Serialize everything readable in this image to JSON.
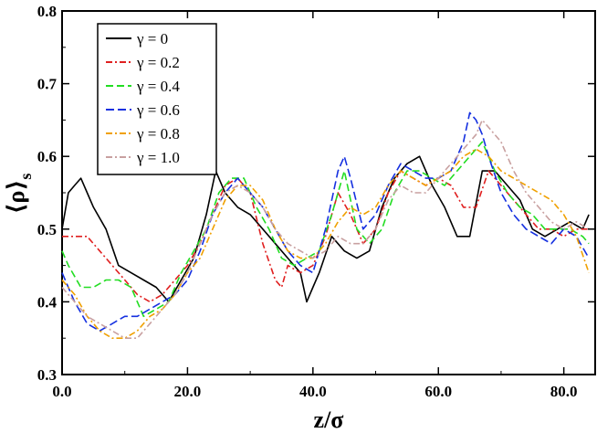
{
  "chart_data": {
    "type": "line",
    "title": "",
    "xlabel": "z/σ",
    "ylabel": "⟨ρ⟩",
    "ylabel_subscript": "s",
    "xlim": [
      0,
      85
    ],
    "ylim": [
      0.3,
      0.8
    ],
    "xticks": [
      0,
      20,
      40,
      60,
      80
    ],
    "xtick_labels": [
      "0.0",
      "20.0",
      "40.0",
      "60.0",
      "80.0"
    ],
    "yticks": [
      0.3,
      0.4,
      0.5,
      0.6,
      0.7,
      0.8
    ],
    "ytick_labels": [
      "0.3",
      "0.4",
      "0.5",
      "0.6",
      "0.7",
      "0.8"
    ],
    "grid": false,
    "legend_position": "top-left",
    "series": [
      {
        "name": "γ = 0",
        "color": "#000000",
        "dash": "",
        "x": [
          0,
          1,
          2,
          3,
          4,
          5,
          7,
          9,
          11,
          13,
          15,
          17,
          19,
          21,
          23,
          24.5,
          26,
          28,
          30,
          32,
          34,
          36,
          38,
          39,
          40,
          41,
          43,
          45,
          47,
          49,
          51,
          53,
          55,
          57,
          59,
          61,
          63,
          65,
          67,
          69,
          71,
          73,
          75,
          77,
          79,
          81,
          83,
          84
        ],
        "y": [
          0.5,
          0.55,
          0.56,
          0.57,
          0.55,
          0.53,
          0.5,
          0.45,
          0.44,
          0.43,
          0.42,
          0.4,
          0.43,
          0.46,
          0.52,
          0.58,
          0.55,
          0.53,
          0.52,
          0.5,
          0.48,
          0.46,
          0.44,
          0.4,
          0.42,
          0.44,
          0.49,
          0.47,
          0.46,
          0.47,
          0.53,
          0.57,
          0.59,
          0.6,
          0.56,
          0.53,
          0.49,
          0.49,
          0.58,
          0.58,
          0.56,
          0.54,
          0.5,
          0.49,
          0.5,
          0.51,
          0.5,
          0.52
        ]
      },
      {
        "name": "γ = 0.2",
        "color": "#e02020",
        "dash": "7,3,2,3",
        "x": [
          0,
          2,
          4,
          6,
          8,
          10,
          12,
          14,
          16,
          18,
          20,
          22,
          24,
          26,
          28,
          30,
          32,
          34,
          35,
          36,
          38,
          40,
          42,
          44,
          46,
          48,
          50,
          52,
          54,
          56,
          58,
          60,
          62,
          64,
          66,
          68,
          70,
          72,
          74,
          76,
          78,
          80,
          82,
          84
        ],
        "y": [
          0.49,
          0.49,
          0.49,
          0.47,
          0.45,
          0.43,
          0.41,
          0.4,
          0.41,
          0.43,
          0.45,
          0.48,
          0.52,
          0.56,
          0.57,
          0.55,
          0.48,
          0.43,
          0.42,
          0.45,
          0.44,
          0.45,
          0.49,
          0.55,
          0.52,
          0.48,
          0.5,
          0.55,
          0.58,
          0.57,
          0.56,
          0.57,
          0.56,
          0.53,
          0.53,
          0.58,
          0.56,
          0.54,
          0.52,
          0.5,
          0.5,
          0.49,
          0.5,
          0.5
        ]
      },
      {
        "name": "γ = 0.4",
        "color": "#22dd22",
        "dash": "8,4",
        "x": [
          0,
          1,
          3,
          5,
          7,
          9,
          11,
          13,
          15,
          17,
          19,
          21,
          23,
          25,
          27,
          29,
          31,
          33,
          35,
          37,
          39,
          41,
          43,
          45,
          47,
          49,
          51,
          53,
          55,
          57,
          59,
          61,
          63,
          65,
          67,
          69,
          71,
          73,
          75,
          77,
          79,
          81,
          83,
          84
        ],
        "y": [
          0.47,
          0.45,
          0.42,
          0.42,
          0.43,
          0.43,
          0.42,
          0.38,
          0.39,
          0.4,
          0.44,
          0.47,
          0.5,
          0.55,
          0.57,
          0.57,
          0.53,
          0.5,
          0.46,
          0.45,
          0.46,
          0.47,
          0.52,
          0.58,
          0.5,
          0.48,
          0.5,
          0.55,
          0.58,
          0.58,
          0.57,
          0.56,
          0.58,
          0.6,
          0.62,
          0.58,
          0.55,
          0.53,
          0.52,
          0.5,
          0.5,
          0.5,
          0.49,
          0.48
        ]
      },
      {
        "name": "γ = 0.6",
        "color": "#1530e0",
        "dash": "9,4",
        "x": [
          0,
          2,
          4,
          6,
          8,
          10,
          12,
          14,
          16,
          18,
          20,
          22,
          24,
          26,
          28,
          30,
          32,
          34,
          36,
          38,
          40,
          42,
          44,
          45,
          46,
          48,
          50,
          52,
          54,
          56,
          58,
          60,
          62,
          64,
          65,
          66,
          67,
          68,
          70,
          72,
          74,
          76,
          78,
          80,
          82,
          84
        ],
        "y": [
          0.44,
          0.4,
          0.37,
          0.36,
          0.37,
          0.38,
          0.38,
          0.39,
          0.4,
          0.41,
          0.43,
          0.47,
          0.52,
          0.55,
          0.57,
          0.55,
          0.53,
          0.5,
          0.47,
          0.45,
          0.44,
          0.5,
          0.58,
          0.6,
          0.57,
          0.5,
          0.52,
          0.56,
          0.59,
          0.58,
          0.57,
          0.57,
          0.58,
          0.62,
          0.66,
          0.65,
          0.63,
          0.6,
          0.55,
          0.52,
          0.5,
          0.49,
          0.48,
          0.5,
          0.49,
          0.46
        ]
      },
      {
        "name": "γ = 0.8",
        "color": "#f0a000",
        "dash": "7,3,2,3",
        "x": [
          0,
          2,
          4,
          6,
          8,
          10,
          12,
          14,
          16,
          18,
          20,
          22,
          24,
          26,
          28,
          30,
          32,
          34,
          36,
          38,
          40,
          42,
          44,
          46,
          48,
          50,
          52,
          54,
          56,
          58,
          60,
          62,
          64,
          66,
          68,
          70,
          72,
          74,
          76,
          78,
          80,
          82,
          84
        ],
        "y": [
          0.43,
          0.41,
          0.38,
          0.36,
          0.35,
          0.35,
          0.36,
          0.38,
          0.39,
          0.41,
          0.44,
          0.46,
          0.5,
          0.54,
          0.56,
          0.56,
          0.54,
          0.5,
          0.47,
          0.46,
          0.46,
          0.48,
          0.51,
          0.53,
          0.52,
          0.53,
          0.56,
          0.58,
          0.57,
          0.56,
          0.57,
          0.58,
          0.6,
          0.61,
          0.6,
          0.58,
          0.57,
          0.56,
          0.55,
          0.54,
          0.52,
          0.49,
          0.44
        ]
      },
      {
        "name": "γ = 1.0",
        "color": "#c8a0a0",
        "dash": "7,3,2,3",
        "x": [
          0,
          2,
          4,
          6,
          8,
          10,
          12,
          14,
          16,
          18,
          20,
          22,
          24,
          26,
          28,
          30,
          32,
          34,
          36,
          38,
          40,
          42,
          44,
          46,
          48,
          50,
          52,
          54,
          56,
          58,
          60,
          62,
          64,
          66,
          67,
          68,
          70,
          72,
          74,
          76,
          78,
          80,
          82,
          84
        ],
        "y": [
          0.42,
          0.4,
          0.38,
          0.37,
          0.36,
          0.35,
          0.35,
          0.37,
          0.39,
          0.41,
          0.44,
          0.48,
          0.52,
          0.55,
          0.56,
          0.55,
          0.53,
          0.5,
          0.48,
          0.47,
          0.46,
          0.47,
          0.49,
          0.48,
          0.48,
          0.5,
          0.54,
          0.56,
          0.55,
          0.55,
          0.57,
          0.59,
          0.61,
          0.63,
          0.65,
          0.64,
          0.62,
          0.58,
          0.55,
          0.53,
          0.51,
          0.5,
          0.51,
          0.5
        ]
      }
    ]
  }
}
